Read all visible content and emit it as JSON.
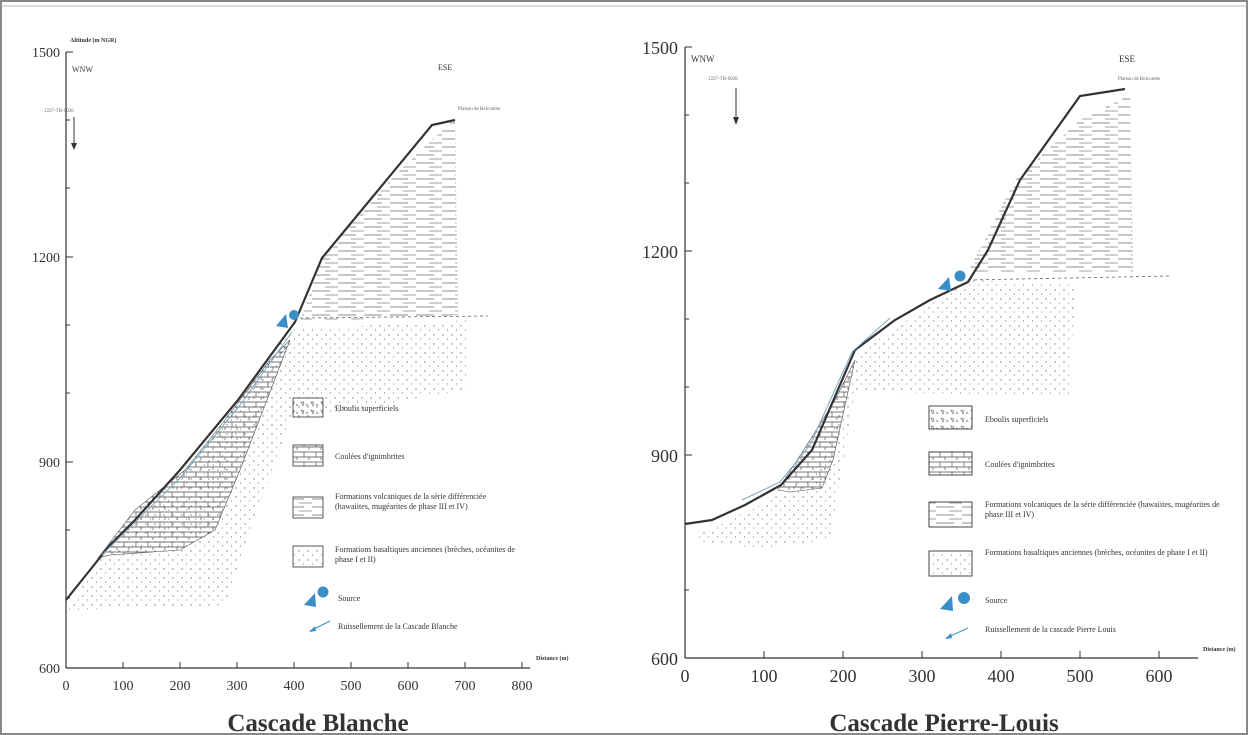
{
  "colors": {
    "line": "#333333",
    "hatch": "#666666",
    "source": "#3a8fc8",
    "border": "#888888"
  },
  "panels": [
    {
      "id": "blanche",
      "title": "Cascade Blanche",
      "y_axis_label": "Altitude (m NGR)",
      "x_axis_label": "Distance (m)",
      "y_ticks": [
        "1500",
        "1200",
        "900",
        "600"
      ],
      "x_ticks": [
        "0",
        "100",
        "200",
        "300",
        "400",
        "500",
        "600",
        "700",
        "800"
      ],
      "dir_left": "WNW",
      "dir_right": "ESE",
      "arrow_label": "1227-TR-0026",
      "plateau_label": "Plateau de Belcombe",
      "legend": [
        {
          "key": "eboulis",
          "label": "Eboulis superficiels"
        },
        {
          "key": "coulees",
          "label": "Coulées d'ignimbrites"
        },
        {
          "key": "volcaniques",
          "label": "Formations volcaniques de la série différenciée (hawaiites, mugéarites de phase III et IV)"
        },
        {
          "key": "basaltiques",
          "label": "Formations basaltiques anciennes (brèches, océanites de phase I et II)"
        },
        {
          "key": "source",
          "label": "Source"
        },
        {
          "key": "ruissellement",
          "label": "Ruissellement de la Cascade Blanche"
        }
      ]
    },
    {
      "id": "pierre-louis",
      "title": "Cascade Pierre-Louis",
      "y_axis_label": "",
      "x_axis_label": "Distance (m)",
      "y_ticks": [
        "1500",
        "1200",
        "900",
        "600"
      ],
      "x_ticks": [
        "0",
        "100",
        "200",
        "300",
        "400",
        "500",
        "600"
      ],
      "dir_left": "WNW",
      "dir_right": "ESE",
      "arrow_label": "1227-TR-0028",
      "plateau_label": "Plateau de Belcombe",
      "legend": [
        {
          "key": "eboulis",
          "label": "Eboulis superficiels"
        },
        {
          "key": "coulees",
          "label": "Coulées d'ignimbrites"
        },
        {
          "key": "volcaniques",
          "label": "Formations volcaniques de la série différenciée (hawaiites, mugéarites de phase III et IV)"
        },
        {
          "key": "basaltiques",
          "label": "Formations basaltiques anciennes (brèches, océanites de phase I et II)"
        },
        {
          "key": "source",
          "label": "Source"
        },
        {
          "key": "ruissellement",
          "label": "Ruissellement de la cascade Pierre Louis"
        }
      ]
    }
  ]
}
